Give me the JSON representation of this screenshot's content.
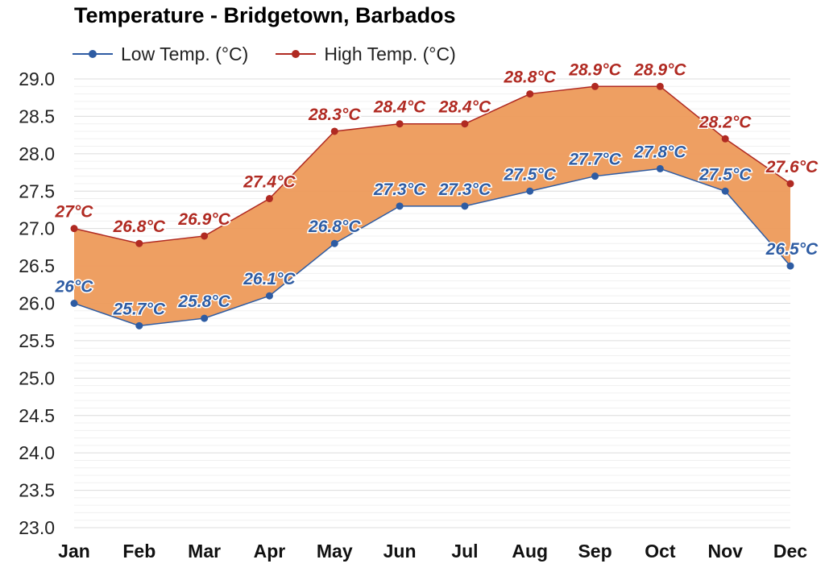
{
  "chart_data": {
    "type": "area",
    "title": "Temperature - Bridgetown, Barbados",
    "categories": [
      "Jan",
      "Feb",
      "Mar",
      "Apr",
      "May",
      "Jun",
      "Jul",
      "Aug",
      "Sep",
      "Oct",
      "Nov",
      "Dec"
    ],
    "series": [
      {
        "name": "Low Temp. (°C)",
        "color": "#2e5ca3",
        "values": [
          26.0,
          25.7,
          25.8,
          26.1,
          26.8,
          27.3,
          27.3,
          27.5,
          27.7,
          27.8,
          27.5,
          26.5
        ],
        "labels": [
          "26°C",
          "25.7°C",
          "25.8°C",
          "26.1°C",
          "26.8°C",
          "27.3°C",
          "27.3°C",
          "27.5°C",
          "27.7°C",
          "27.8°C",
          "27.5°C",
          "26.5°C"
        ]
      },
      {
        "name": "High Temp. (°C)",
        "color": "#b02a22",
        "values": [
          27.0,
          26.8,
          26.9,
          27.4,
          28.3,
          28.4,
          28.4,
          28.8,
          28.9,
          28.9,
          28.2,
          27.6
        ],
        "labels": [
          "27°C",
          "26.8°C",
          "26.9°C",
          "27.4°C",
          "28.3°C",
          "28.4°C",
          "28.4°C",
          "28.8°C",
          "28.9°C",
          "28.9°C",
          "28.2°C",
          "27.6°C"
        ]
      }
    ],
    "ylim": [
      23.0,
      29.0
    ],
    "yticks": [
      "23.0",
      "23.5",
      "24.0",
      "24.5",
      "25.0",
      "25.5",
      "26.0",
      "26.5",
      "27.0",
      "27.5",
      "28.0",
      "28.5",
      "29.0"
    ],
    "fill_color": "#ed9a5a",
    "grid": true,
    "legend_position": "top-left"
  }
}
